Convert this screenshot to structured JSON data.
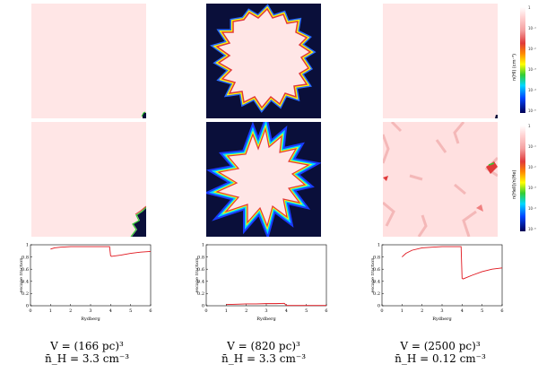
{
  "colorbars": [
    {
      "label": "n(HI) (cm⁻³)",
      "ticks": [
        "1",
        "10⁻¹",
        "10⁻²",
        "10⁻³",
        "10⁻⁴",
        "10⁻⁵"
      ]
    },
    {
      "label": "n(HeII)/n(He)",
      "ticks": [
        "1",
        "10⁻¹",
        "10⁻²",
        "10⁻³",
        "10⁻⁴",
        "10⁻⁵"
      ]
    }
  ],
  "colors": {
    "ionized": "#ffe6e6",
    "neutral": "#0a0f3a",
    "line": "#e0141c"
  },
  "chart_data": [
    {
      "type": "line",
      "xlabel": "Rydberg",
      "ylabel": "escape fraction",
      "xlim": [
        0,
        6
      ],
      "ylim": [
        0,
        1
      ],
      "xticks": [
        0,
        1,
        2,
        3,
        4,
        5,
        6
      ],
      "yticks": [
        0,
        0.2,
        0.4,
        0.6,
        0.8,
        1
      ],
      "series": [
        {
          "x": [
            1.0,
            1.2,
            1.5,
            2.0,
            2.5,
            3.0,
            3.5,
            3.95,
            4.0,
            4.05,
            4.5,
            5.0,
            5.5,
            6.0
          ],
          "y": [
            0.93,
            0.95,
            0.96,
            0.97,
            0.97,
            0.97,
            0.97,
            0.97,
            0.82,
            0.81,
            0.83,
            0.86,
            0.88,
            0.89
          ]
        }
      ]
    },
    {
      "type": "line",
      "xlabel": "Rydberg",
      "ylabel": "escape fraction",
      "xlim": [
        0,
        6
      ],
      "ylim": [
        0,
        1
      ],
      "xticks": [
        0,
        1,
        2,
        3,
        4,
        5,
        6
      ],
      "yticks": [
        0,
        0.2,
        0.4,
        0.6,
        0.8,
        1
      ],
      "series": [
        {
          "x": [
            1.0,
            1.5,
            2.0,
            2.5,
            3.0,
            3.5,
            3.9,
            4.0,
            4.5,
            5.0,
            5.5,
            6.0
          ],
          "y": [
            0.02,
            0.025,
            0.03,
            0.03,
            0.035,
            0.035,
            0.04,
            0.005,
            0.005,
            0.005,
            0.005,
            0.005
          ]
        }
      ]
    },
    {
      "type": "line",
      "xlabel": "Rydberg",
      "ylabel": "escape fraction",
      "xlim": [
        0,
        6
      ],
      "ylim": [
        0,
        1
      ],
      "xticks": [
        0,
        1,
        2,
        3,
        4,
        5,
        6
      ],
      "yticks": [
        0,
        0.2,
        0.4,
        0.6,
        0.8,
        1
      ],
      "series": [
        {
          "x": [
            1.0,
            1.2,
            1.5,
            2.0,
            2.5,
            3.0,
            3.5,
            3.95,
            4.0,
            4.05,
            4.5,
            5.0,
            5.5,
            6.0
          ],
          "y": [
            0.8,
            0.86,
            0.91,
            0.95,
            0.96,
            0.97,
            0.97,
            0.97,
            0.45,
            0.44,
            0.5,
            0.56,
            0.6,
            0.62
          ]
        }
      ]
    }
  ],
  "captions": [
    {
      "line1": "V = (166 pc)³",
      "line2": "n̄_H = 3.3 cm⁻³"
    },
    {
      "line1": "V = (820 pc)³",
      "line2": "n̄_H = 3.3 cm⁻³"
    },
    {
      "line1": "V = (2500 pc)³",
      "line2": "n̄_H = 0.12 cm⁻³"
    }
  ]
}
